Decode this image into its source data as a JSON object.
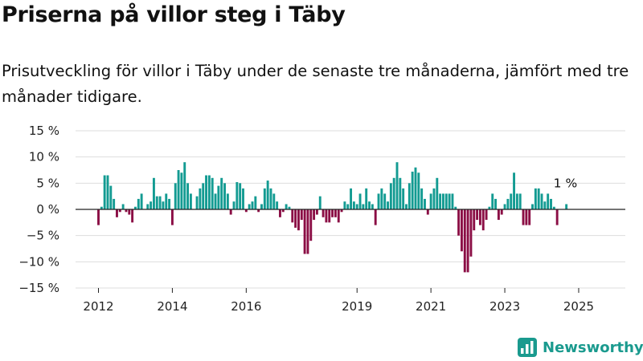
{
  "title": "Priserna på villor steg i Täby",
  "subtitle": "Prisutveckling för villor i Täby under de senaste tre månaderna, jämfört med tre månader tidigare.",
  "brand": {
    "name": "Newsworthy",
    "icon": "bar-chart-logo-icon"
  },
  "colors": {
    "positive": "#139b92",
    "negative": "#8b0e45",
    "grid": "#dddddd",
    "zero_line": "#222222"
  },
  "chart_data": {
    "type": "bar",
    "x_unit": "month",
    "start": "2012-01",
    "ylim": [
      -15,
      15
    ],
    "yticks": [
      15,
      10,
      5,
      0,
      -5,
      -10,
      -15
    ],
    "ytick_labels": [
      "15 %",
      "10 %",
      "5 %",
      "0 %",
      "−5 %",
      "−10 %",
      "−15 %"
    ],
    "xtick_labels": [
      {
        "year": 2012,
        "label": "2012"
      },
      {
        "year": 2014,
        "label": "2014"
      },
      {
        "year": 2016,
        "label": "2016"
      },
      {
        "year": 2019,
        "label": "2019"
      },
      {
        "year": 2021,
        "label": "2021"
      },
      {
        "year": 2023,
        "label": "2023"
      },
      {
        "year": 2025,
        "label": "2025"
      }
    ],
    "grid": true,
    "legend": "none",
    "annotation": {
      "label": "1 %",
      "target": "last"
    },
    "values": [
      -3,
      0.5,
      6.5,
      6.5,
      4.5,
      2,
      -1.5,
      -0.5,
      1,
      -0.5,
      -1,
      -2.5,
      0.5,
      2,
      3,
      0,
      1,
      1.5,
      6,
      2.5,
      2.5,
      1.5,
      3,
      2,
      -3,
      5,
      7.5,
      7,
      9,
      5,
      3,
      0,
      2.5,
      4,
      5,
      6.5,
      6.5,
      6,
      3,
      4.5,
      6,
      5,
      3,
      -1,
      1.5,
      5.2,
      5,
      4,
      -0.5,
      1,
      1.5,
      2.5,
      -0.5,
      1,
      4,
      5.5,
      4,
      3,
      1.5,
      -1.5,
      -0.5,
      1,
      0.5,
      -2.5,
      -3.5,
      -4,
      -2,
      -8.5,
      -8.5,
      -6,
      -2,
      -1,
      2.5,
      -1.5,
      -2.5,
      -2.5,
      -1.5,
      -1.5,
      -2.5,
      -0.5,
      1.5,
      1,
      4,
      1.5,
      1,
      3,
      1,
      4,
      1.5,
      1,
      -3,
      3,
      4,
      3,
      1.5,
      5,
      6,
      9,
      6,
      4,
      1,
      5,
      7.2,
      8,
      7,
      4,
      2,
      -1,
      3,
      4,
      6,
      3,
      3,
      3,
      3,
      3,
      0.5,
      -5,
      -8,
      -12,
      -12,
      -9,
      -4,
      -2,
      -3,
      -4,
      -2,
      0.5,
      3,
      2,
      -2,
      -1,
      1,
      2,
      3,
      7,
      3,
      3,
      -3,
      -3,
      -3,
      1,
      4,
      4,
      3,
      1.5,
      3,
      2,
      0.5,
      -3,
      0,
      0,
      1
    ]
  }
}
